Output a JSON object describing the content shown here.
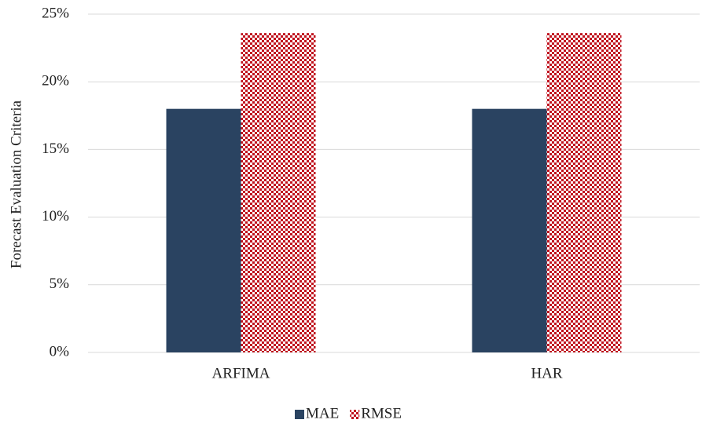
{
  "chart_data": {
    "type": "bar",
    "y_label": "Forecast Evaluation Criteria",
    "categories": [
      "ARFIMA",
      "HAR"
    ],
    "series": [
      {
        "name": "MAE",
        "color": "#2a4361",
        "values": [
          18.0,
          18.0
        ]
      },
      {
        "name": "RMSE",
        "color": "#c0121e",
        "pattern": "checker",
        "values": [
          23.6,
          23.6
        ]
      }
    ],
    "ylim": [
      0,
      25
    ],
    "yticks": [
      {
        "value": 0,
        "label": "0%"
      },
      {
        "value": 5,
        "label": "5%"
      },
      {
        "value": 10,
        "label": "10%"
      },
      {
        "value": 15,
        "label": "15%"
      },
      {
        "value": 20,
        "label": "20%"
      },
      {
        "value": 25,
        "label": "25%"
      }
    ],
    "grid": true,
    "legend": "bottom"
  }
}
